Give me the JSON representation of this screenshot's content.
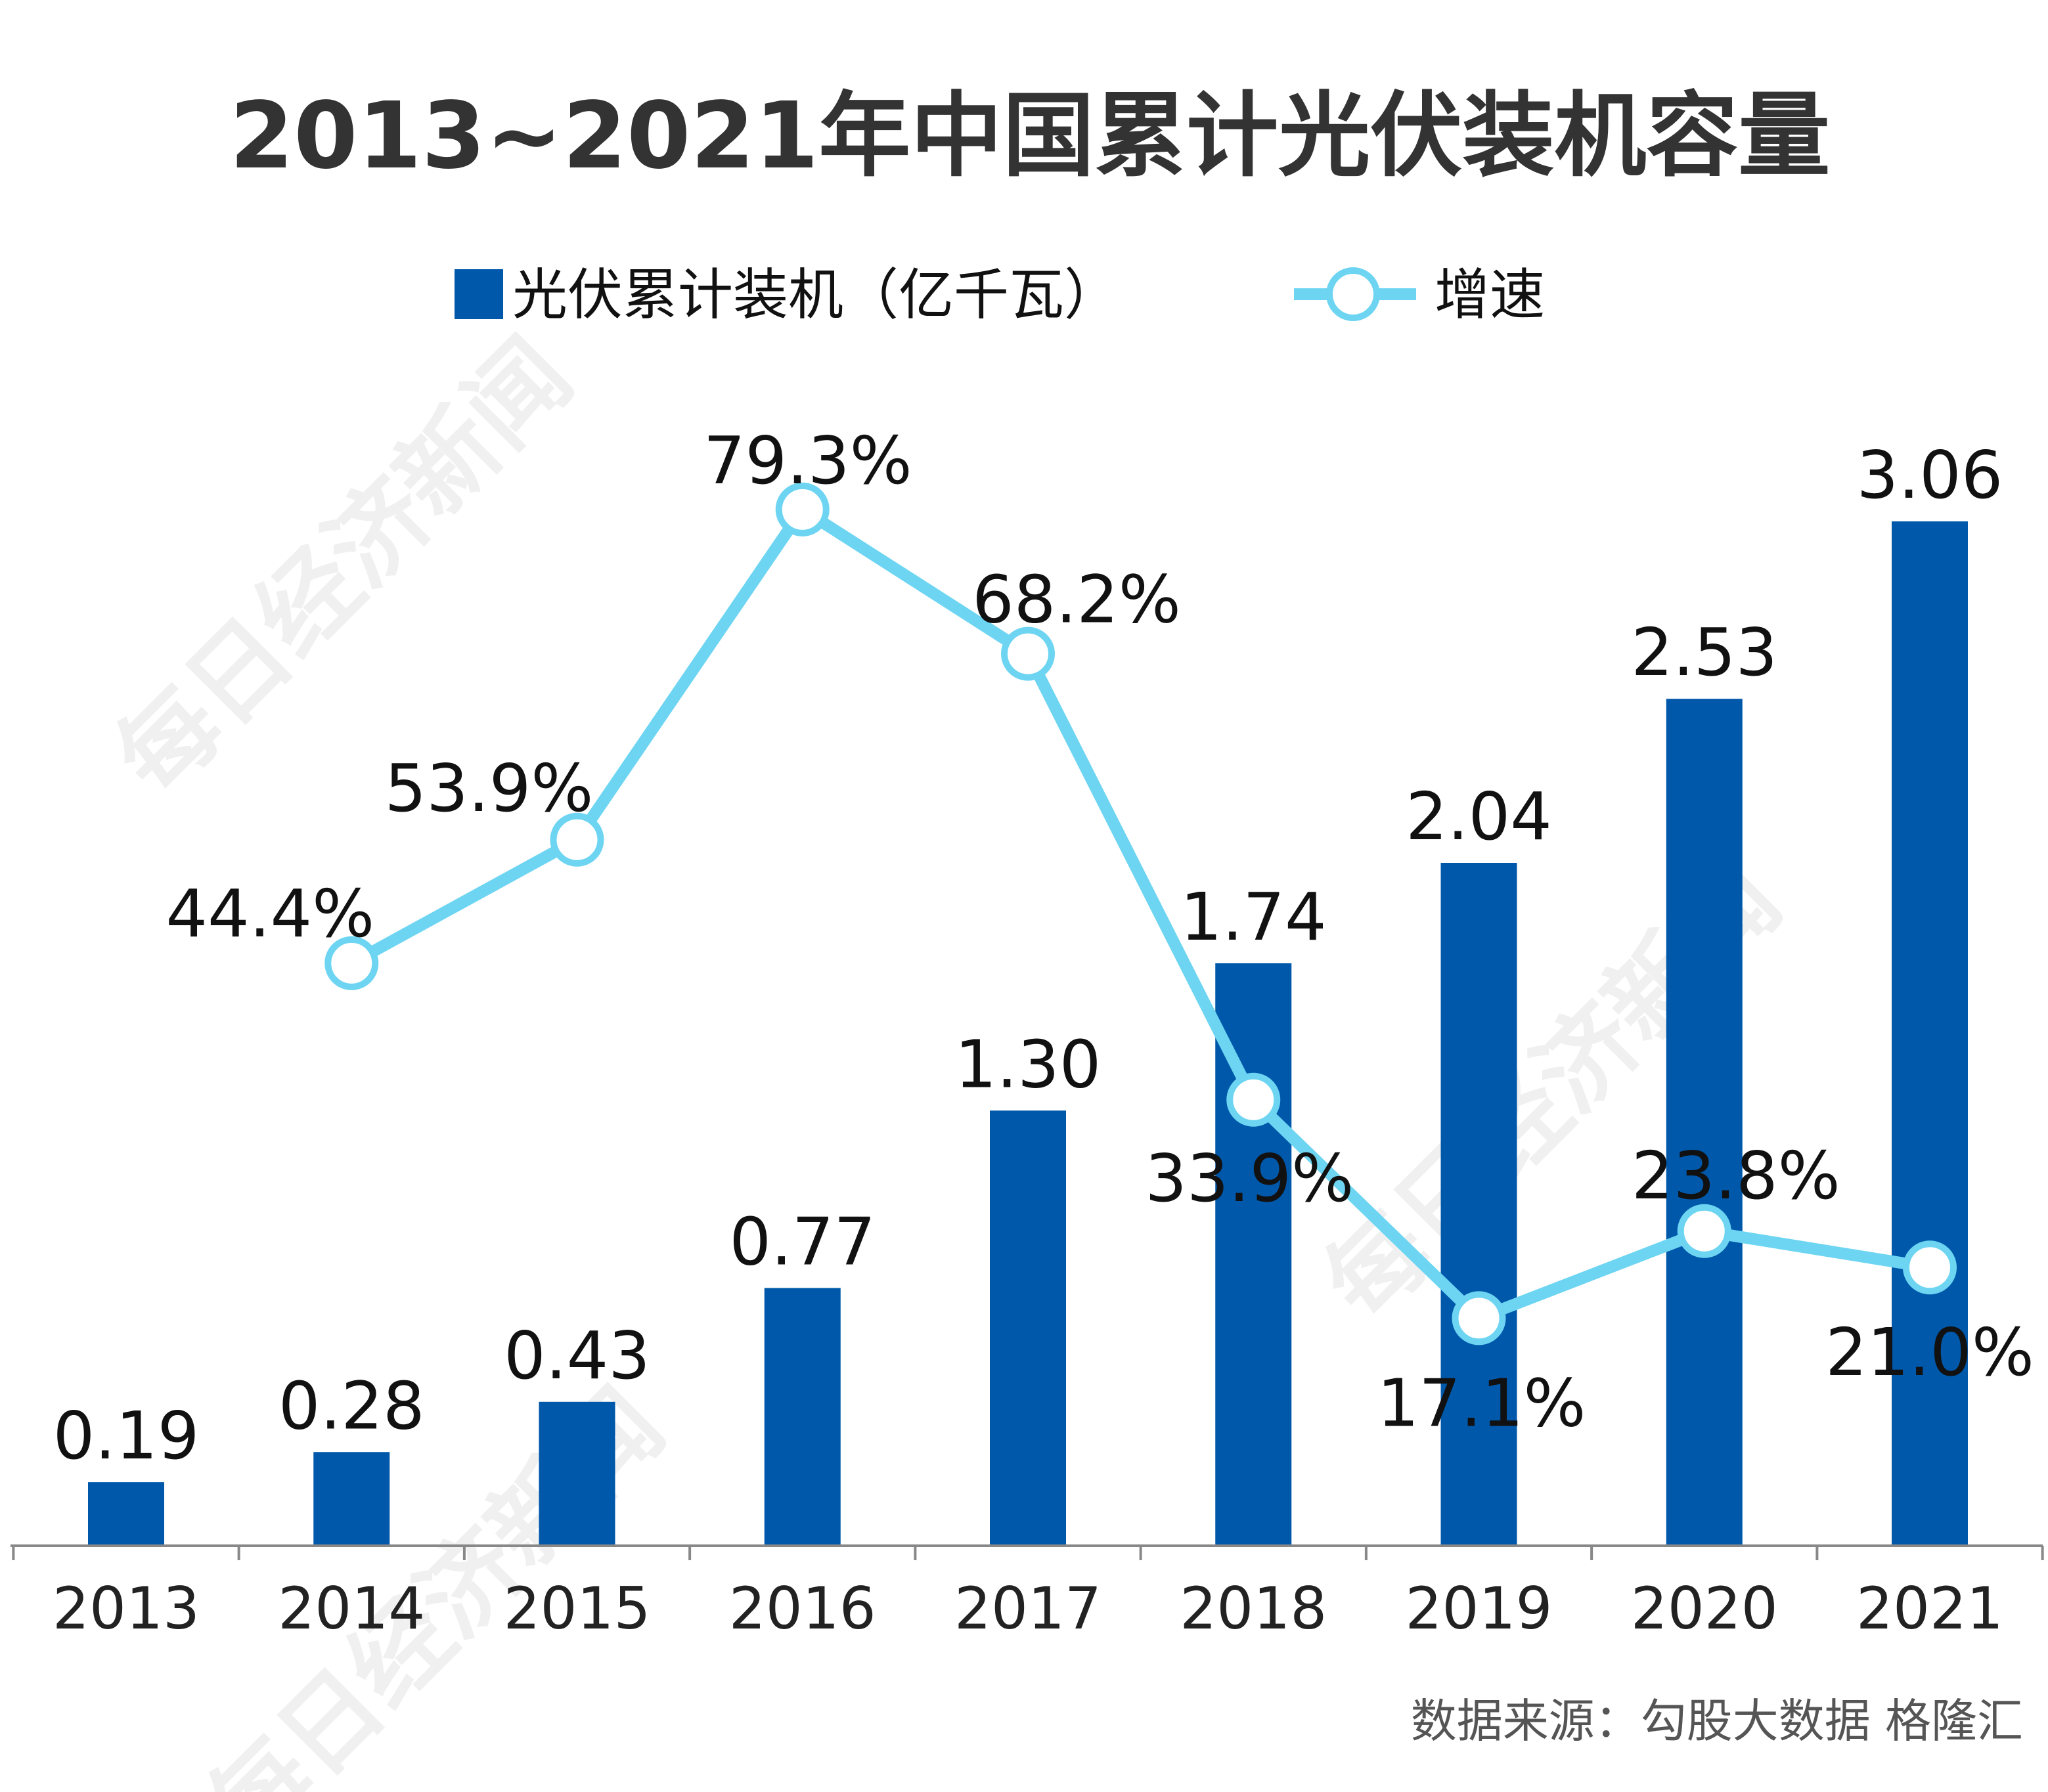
{
  "chart_data": {
    "type": "bar",
    "title": "2013~2021年中国累计光伏装机容量",
    "categories": [
      "2013",
      "2014",
      "2015",
      "2016",
      "2017",
      "2018",
      "2019",
      "2020",
      "2021"
    ],
    "series": [
      {
        "name": "光伏累计装机（亿千瓦）",
        "type": "bar",
        "color": "#0058AA",
        "values": [
          0.19,
          0.28,
          0.43,
          0.77,
          1.3,
          1.74,
          2.04,
          2.53,
          3.06
        ],
        "labels": [
          "0.19",
          "0.28",
          "0.43",
          "0.77",
          "1.30",
          "1.74",
          "2.04",
          "2.53",
          "3.06"
        ]
      },
      {
        "name": "增速",
        "type": "line",
        "color": "#6DD5F2",
        "values": [
          null,
          44.4,
          53.9,
          79.3,
          68.2,
          33.9,
          17.1,
          23.8,
          21.0
        ],
        "labels": [
          "",
          "44.4%",
          "53.9%",
          "79.3%",
          "68.2%",
          "33.9%",
          "17.1%",
          "23.8%",
          "21.0%"
        ]
      }
    ],
    "legend": {
      "position": "top",
      "items": [
        "光伏累计装机（亿千瓦）",
        "增速"
      ]
    },
    "grid": false,
    "y_axis_visible": false,
    "source": "数据来源：勾股大数据 格隆汇",
    "watermark": "每日经济新闻"
  }
}
